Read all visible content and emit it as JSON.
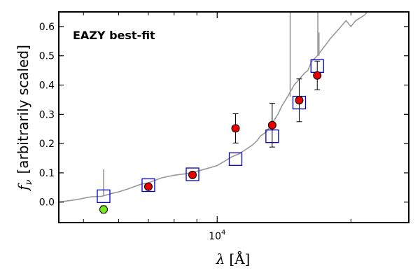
{
  "chart_data": {
    "type": "scatter",
    "annotation": "EAZY best-fit",
    "ylabel": "[arbitrarily scaled]",
    "ylabel_symbol": "f",
    "ylabel_subscript": "ν",
    "xlabel_symbol": "λ",
    "xlabel_unit": "[Å]",
    "xscale": "log",
    "xlim": [
      4400,
      27000
    ],
    "ylim": [
      -0.07,
      0.65
    ],
    "yticks": [
      0.0,
      0.1,
      0.2,
      0.3,
      0.4,
      0.5,
      0.6
    ],
    "ytick_labels": [
      "0.0",
      "0.1",
      "0.2",
      "0.3",
      "0.4",
      "0.5",
      "0.6"
    ],
    "xtick_label_base": "10",
    "xtick_label_exp": "4",
    "xtick_label_value": 10000,
    "x_minor_ticks": [
      5000,
      6000,
      7000,
      8000,
      9000,
      20000
    ],
    "colors": {
      "template": "#999999",
      "model_marker": "#0000cc",
      "observed": "#e60000",
      "upper_point": "#77e61a",
      "annotation": "#ff0000"
    },
    "series": [
      {
        "name": "best-fit template spectrum",
        "kind": "line",
        "x": [
          4400,
          4800,
          5200,
          5500,
          5800,
          6000,
          6300,
          6700,
          7000,
          7500,
          8000,
          8500,
          9000,
          9500,
          10000,
          10400,
          10800,
          11200,
          11600,
          12000,
          12300,
          12500,
          12900,
          13300,
          13700,
          14000,
          14400,
          14900,
          15300,
          15700,
          16000,
          16300,
          16800,
          17200,
          17600,
          18000,
          18500,
          19000,
          19500,
          20000,
          20500,
          21000,
          21500,
          22000,
          22500
        ],
        "y": [
          0.0,
          0.008,
          0.018,
          0.02,
          0.03,
          0.035,
          0.045,
          0.06,
          0.066,
          0.083,
          0.092,
          0.097,
          0.105,
          0.115,
          0.125,
          0.14,
          0.155,
          0.165,
          0.18,
          0.195,
          0.21,
          0.225,
          0.24,
          0.27,
          0.3,
          0.33,
          0.36,
          0.4,
          0.42,
          0.44,
          0.45,
          0.48,
          0.5,
          0.52,
          0.54,
          0.56,
          0.58,
          0.6,
          0.62,
          0.6,
          0.62,
          0.63,
          0.64,
          0.66,
          0.68
        ]
      },
      {
        "name": "template emission lines",
        "kind": "spikes",
        "lines": [
          {
            "x": 5550,
            "base": 0.022,
            "peak": 0.112
          },
          {
            "x": 14600,
            "base": 0.36,
            "peak": 0.68
          },
          {
            "x": 16850,
            "base": 0.5,
            "peak": 0.68
          },
          {
            "x": 16950,
            "base": 0.5,
            "peak": 0.58
          }
        ]
      },
      {
        "name": "model photometry",
        "kind": "open-square",
        "x": [
          5550,
          7000,
          8800,
          11000,
          13300,
          15300,
          16800
        ],
        "y": [
          0.02,
          0.058,
          0.095,
          0.147,
          0.225,
          0.34,
          0.465
        ]
      },
      {
        "name": "observed photometry",
        "kind": "filled-circle",
        "x": [
          7000,
          8800,
          11000,
          13300,
          15300,
          16800
        ],
        "y": [
          0.053,
          0.093,
          0.252,
          0.263,
          0.348,
          0.433
        ],
        "yerr": [
          0.008,
          0.008,
          0.05,
          0.075,
          0.073,
          0.049
        ]
      },
      {
        "name": "low point",
        "kind": "filled-circle-green",
        "x": [
          5550
        ],
        "y": [
          -0.025
        ],
        "yerr": [
          0.012
        ]
      }
    ]
  }
}
